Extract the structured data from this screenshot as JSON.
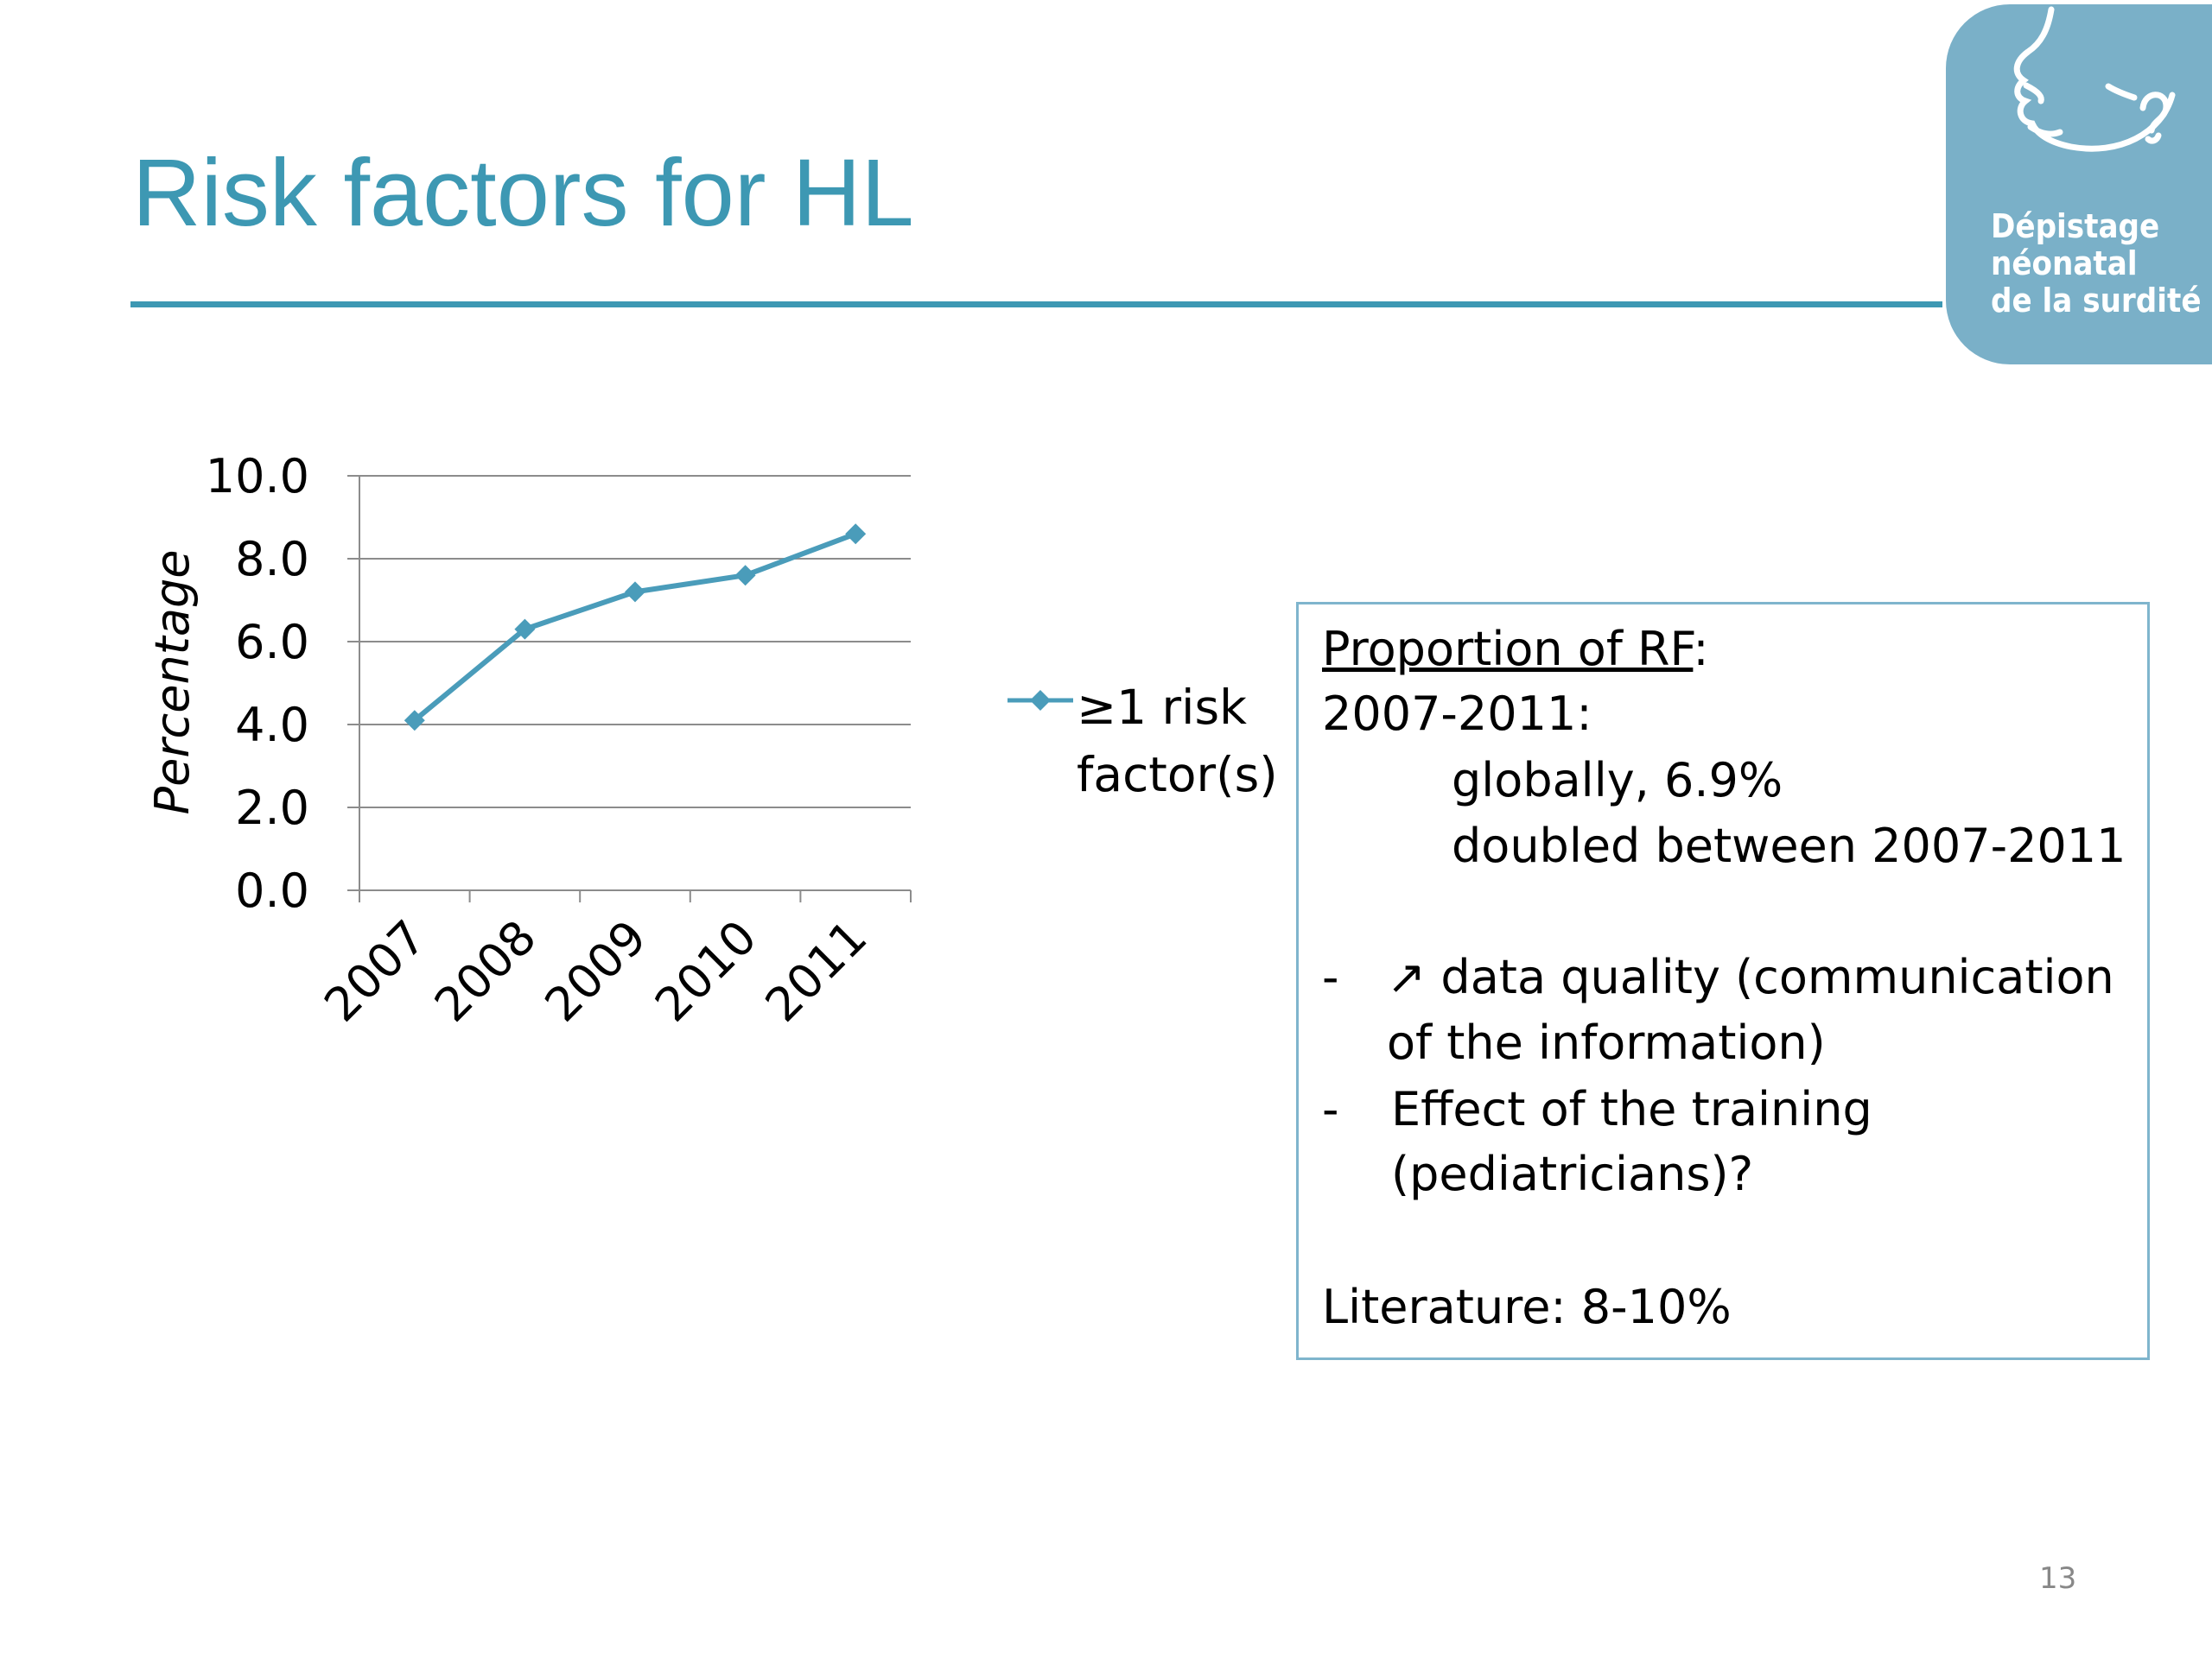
{
  "slide": {
    "title": "Risk factors for HL",
    "page_number": "13",
    "accent_color": "#3d98b3"
  },
  "logo": {
    "icon": "baby-face-ear-icon",
    "lines": [
      "Dépistage",
      "néonatal",
      "de la surdité"
    ],
    "color": "#7ab0c8"
  },
  "chart_data": {
    "type": "line",
    "categories": [
      "2007",
      "2008",
      "2009",
      "2010",
      "2011"
    ],
    "series": [
      {
        "name": "≥1 risk factor(s)",
        "values": [
          4.1,
          6.3,
          7.2,
          7.6,
          8.6
        ],
        "color": "#4a9cba",
        "marker": "diamond"
      }
    ],
    "y_tick_labels": [
      "0.0",
      "2.0",
      "4.0",
      "6.0",
      "8.0",
      "10.0"
    ],
    "ylabel": "Percentage",
    "ylim": [
      0,
      10
    ],
    "grid": true,
    "legend_placement": "right"
  },
  "legend": {
    "label_line1": "≥1 risk",
    "label_line2": "factor(s)"
  },
  "textbox": {
    "heading": "Proportion of RF",
    "heading_suffix": ":",
    "period": "2007-2011:",
    "globally": "globally, 6.9%",
    "doubled": "doubled between 2007-2011",
    "bullet1_dash": "-",
    "bullet1_line1": "↗ data quality (communication",
    "bullet1_line2": "of the information)",
    "bullet2_dash": "-",
    "bullet2_line1": "Effect of the training",
    "bullet2_line2": "(pediatricians)?",
    "literature": "Literature: 8-10%"
  }
}
